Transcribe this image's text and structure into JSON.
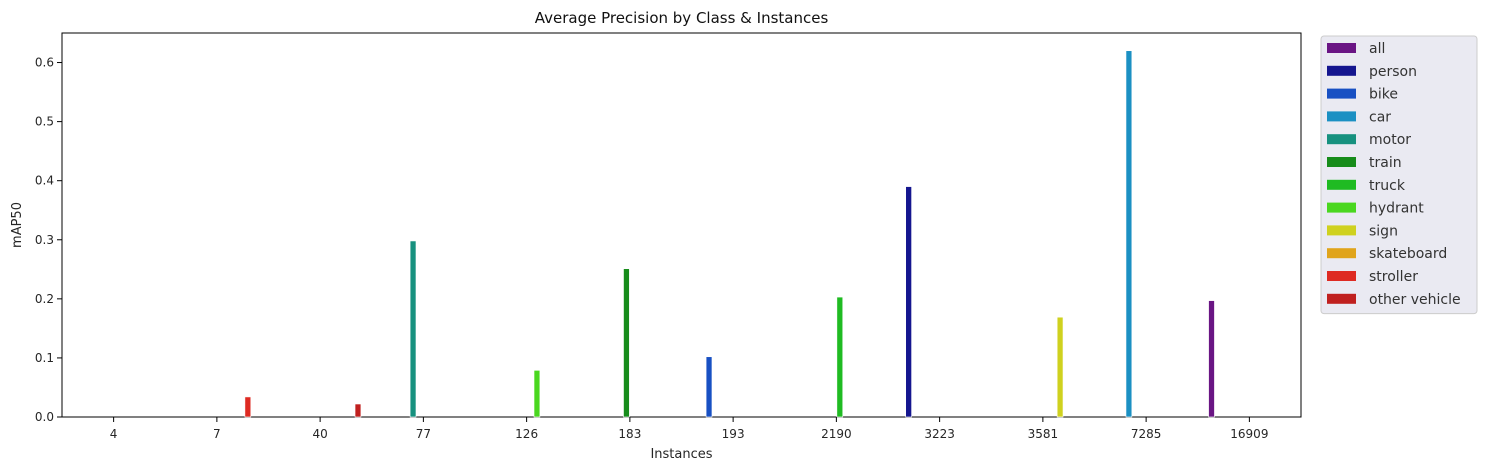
{
  "chart_data": {
    "type": "bar",
    "title": "Average Precision by Class & Instances",
    "xlabel": "Instances",
    "ylabel": "mAP50",
    "ylim": [
      0,
      0.65
    ],
    "yticks": [
      "0.0",
      "0.1",
      "0.2",
      "0.3",
      "0.4",
      "0.5",
      "0.6"
    ],
    "grid": false,
    "legend_position": "outside-right",
    "categories": [
      "4",
      "7",
      "40",
      "77",
      "126",
      "183",
      "193",
      "2190",
      "3223",
      "3581",
      "7285",
      "16909"
    ],
    "series": [
      {
        "name": "all",
        "color": "#6a1584",
        "values": [
          null,
          null,
          null,
          null,
          null,
          null,
          null,
          null,
          null,
          null,
          null,
          0.197
        ]
      },
      {
        "name": "person",
        "color": "#15168f",
        "values": [
          null,
          null,
          null,
          null,
          null,
          null,
          null,
          null,
          0.39,
          null,
          null,
          null
        ]
      },
      {
        "name": "bike",
        "color": "#1850c3",
        "values": [
          null,
          null,
          null,
          null,
          null,
          null,
          0.102,
          null,
          null,
          null,
          null,
          null
        ]
      },
      {
        "name": "car",
        "color": "#1b90c3",
        "values": [
          null,
          null,
          null,
          null,
          null,
          null,
          null,
          null,
          null,
          null,
          0.62,
          null
        ]
      },
      {
        "name": "motor",
        "color": "#17917f",
        "values": [
          null,
          null,
          null,
          0.298,
          null,
          null,
          null,
          null,
          null,
          null,
          null,
          null
        ]
      },
      {
        "name": "train",
        "color": "#178c1b",
        "values": [
          null,
          null,
          null,
          null,
          null,
          0.251,
          null,
          null,
          null,
          null,
          null,
          null
        ]
      },
      {
        "name": "truck",
        "color": "#1fbb22",
        "values": [
          null,
          null,
          null,
          null,
          null,
          null,
          null,
          0.203,
          null,
          null,
          null,
          null
        ]
      },
      {
        "name": "hydrant",
        "color": "#4ad71f",
        "values": [
          null,
          null,
          null,
          null,
          0.079,
          null,
          null,
          null,
          null,
          null,
          null,
          null
        ]
      },
      {
        "name": "sign",
        "color": "#cfd11f",
        "values": [
          null,
          null,
          null,
          null,
          null,
          null,
          null,
          null,
          null,
          0.169,
          null,
          null
        ]
      },
      {
        "name": "skateboard",
        "color": "#e0a41b",
        "values": [
          0.0,
          null,
          null,
          null,
          null,
          null,
          null,
          null,
          null,
          null,
          null,
          null
        ]
      },
      {
        "name": "stroller",
        "color": "#de2a22",
        "values": [
          null,
          0.034,
          null,
          null,
          null,
          null,
          null,
          null,
          null,
          null,
          null,
          null
        ]
      },
      {
        "name": "other vehicle",
        "color": "#c0201f",
        "values": [
          null,
          null,
          0.022,
          null,
          null,
          null,
          null,
          null,
          null,
          null,
          null,
          null
        ]
      }
    ]
  }
}
